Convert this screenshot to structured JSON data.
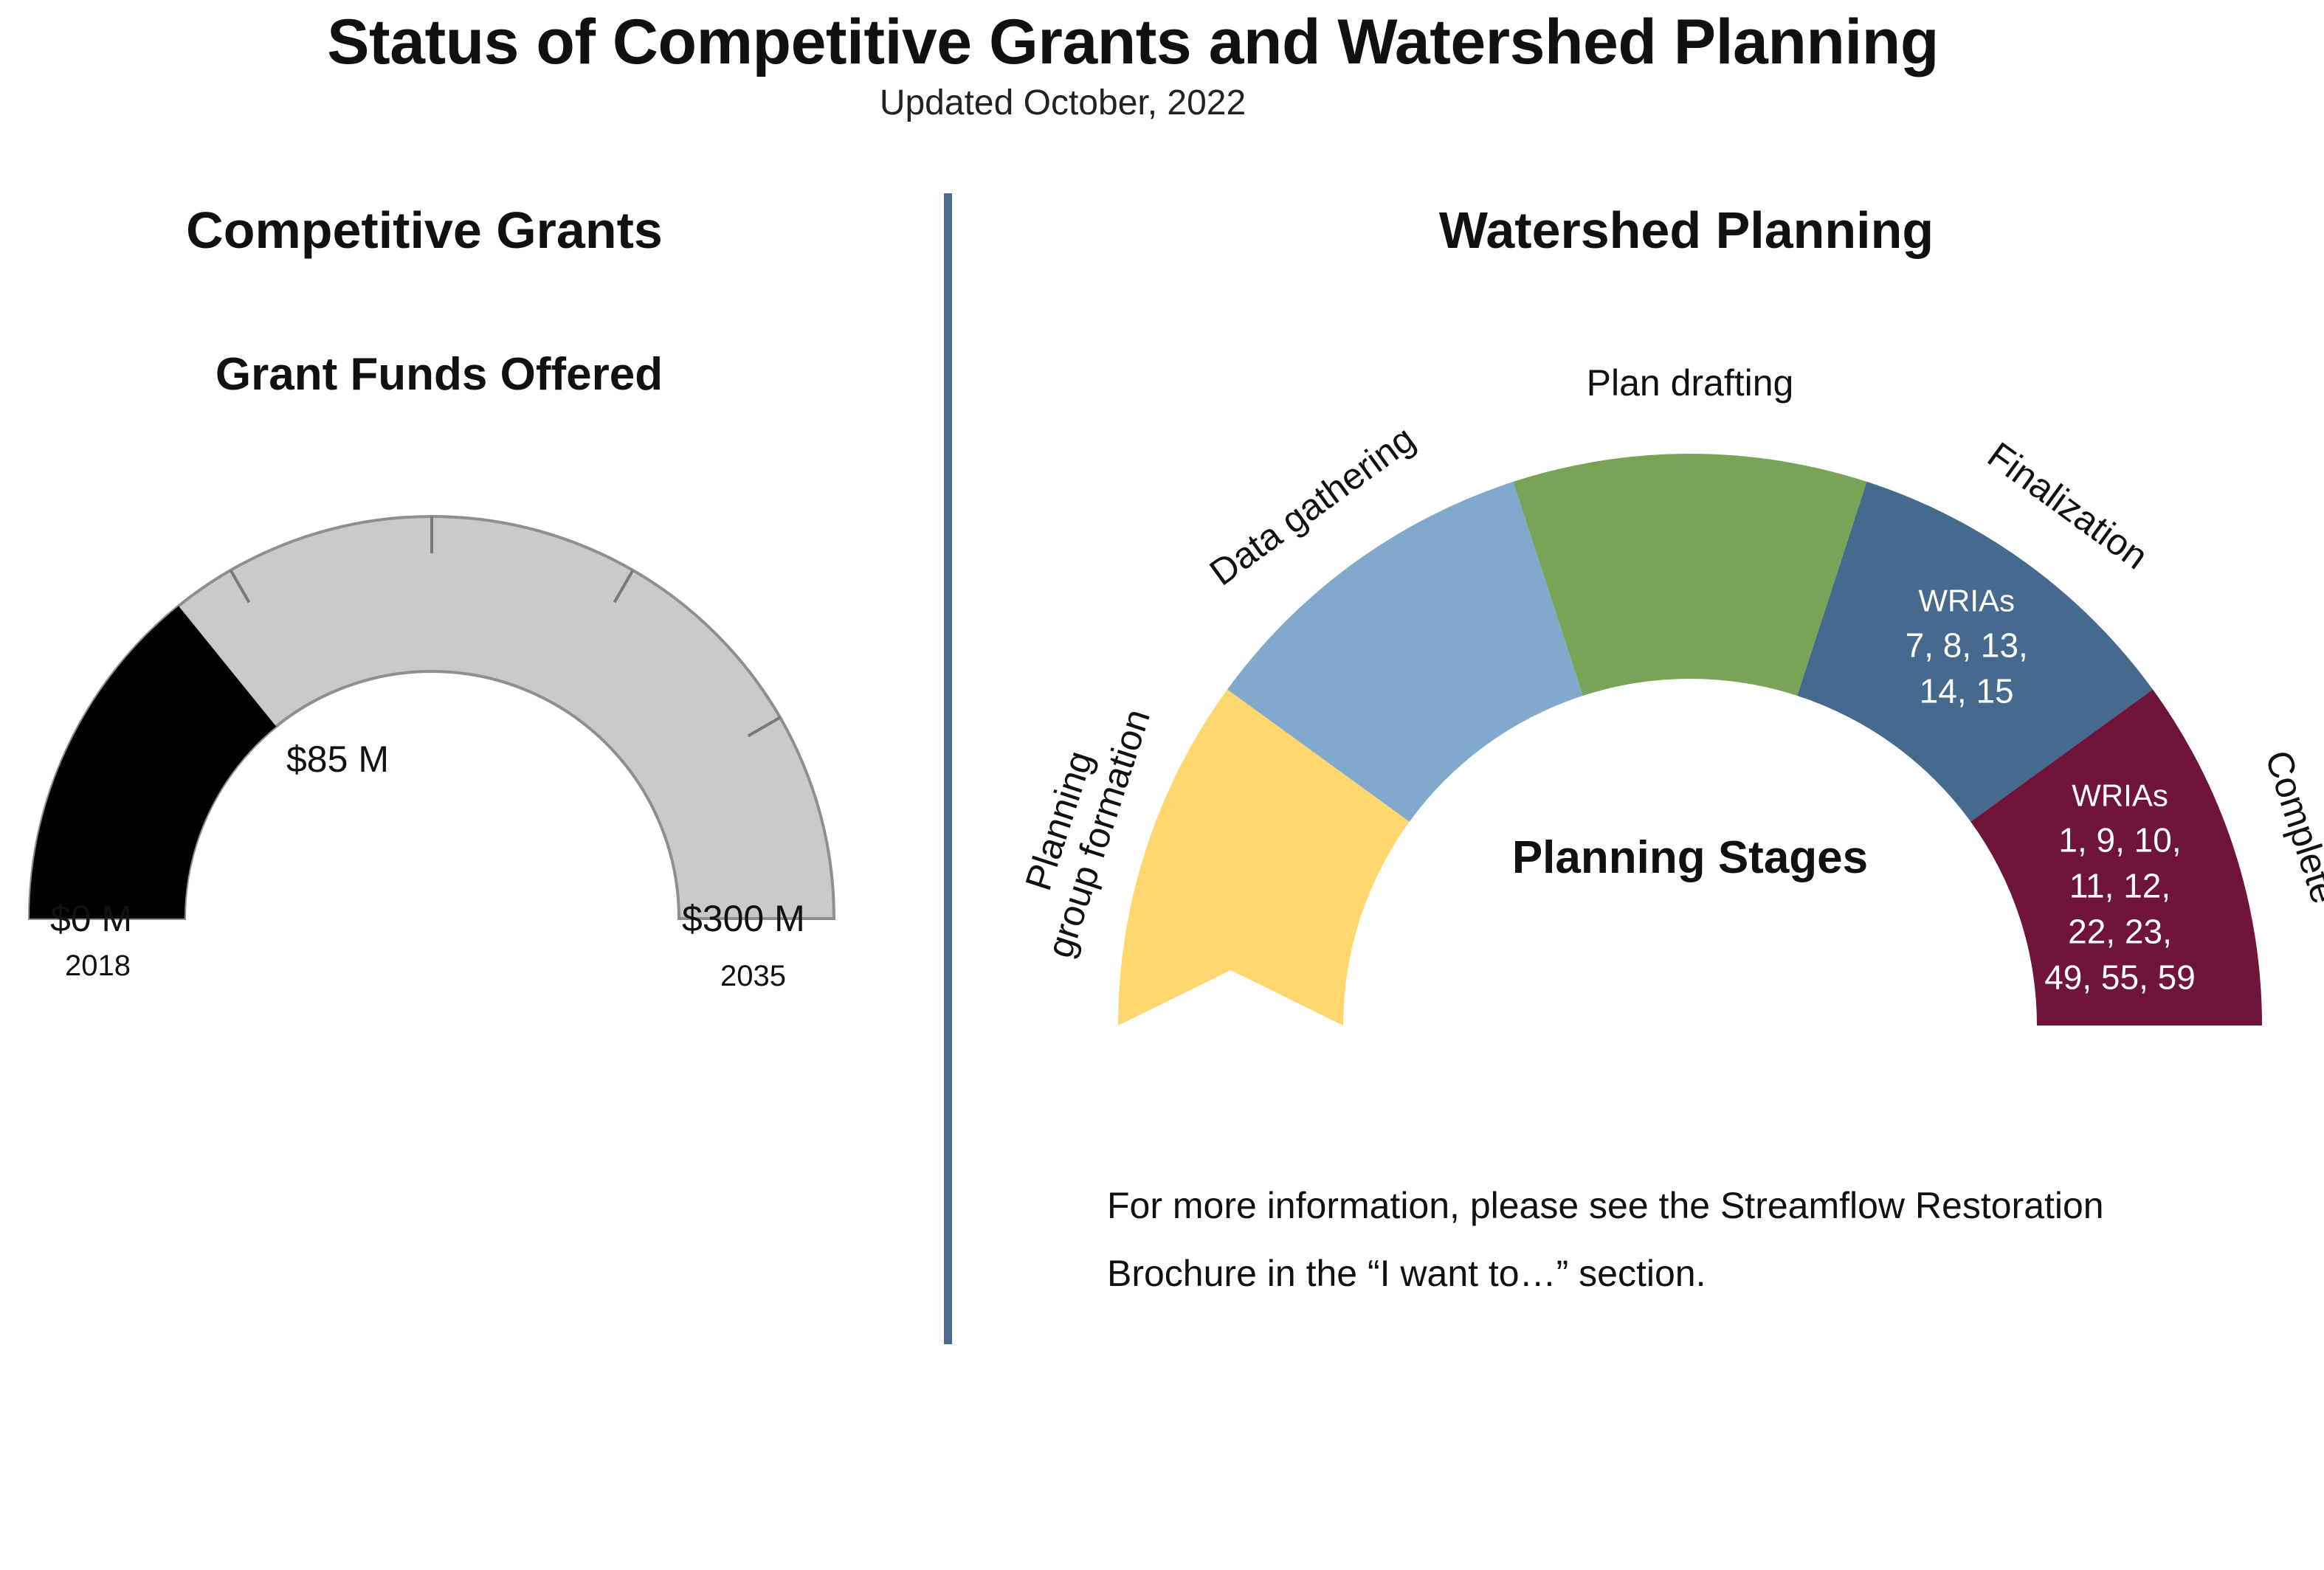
{
  "header": {
    "title": "Status of Competitive Grants and Watershed Planning",
    "subtitle": "Updated October, 2022"
  },
  "grants": {
    "section_title": "Competitive Grants",
    "gauge_title": "Grant Funds Offered",
    "min_label": "$0 M",
    "min_year": "2018",
    "max_label": "$300 M",
    "max_year": "2035",
    "value_label": "$85 M",
    "colors": {
      "filled": "#000000",
      "track": "#c9c9cb",
      "outline": "#8f8f91"
    }
  },
  "watershed": {
    "section_title": "Watershed Planning",
    "center_label": "Planning Stages",
    "info_line1": "For more information, please see the Streamflow Restoration",
    "info_line2": "Brochure in the “I want to…” section."
  },
  "chart_data": [
    {
      "type": "gauge",
      "title": "Grant Funds Offered",
      "min": 0,
      "max": 300,
      "value": 85,
      "unit": "$ M",
      "min_label": "$0 M",
      "max_label": "$300 M",
      "value_label": "$85 M",
      "start_year": "2018",
      "end_year": "2035",
      "tick_count": 6
    },
    {
      "type": "stage-arc",
      "title": "Planning Stages",
      "stages": [
        {
          "name_lines": [
            "Planning",
            "group formation"
          ],
          "color": "#ffd76e",
          "wria_label": "",
          "wrias": []
        },
        {
          "name_lines": [
            "Data gathering"
          ],
          "color": "#80a9cd",
          "wria_label": "",
          "wrias": []
        },
        {
          "name_lines": [
            "Plan drafting"
          ],
          "color": "#79a457",
          "wria_label": "",
          "wrias": []
        },
        {
          "name_lines": [
            "Finalization"
          ],
          "color": "#46698e",
          "wria_label": "WRIAs",
          "wrias": [
            "7, 8, 13,",
            "14, 15"
          ]
        },
        {
          "name_lines": [
            "Complete"
          ],
          "color": "#6f1539",
          "wria_label": "WRIAs",
          "wrias": [
            "1, 9, 10,",
            "11, 12,",
            "22, 23,",
            "49, 55, 59"
          ]
        }
      ]
    }
  ]
}
